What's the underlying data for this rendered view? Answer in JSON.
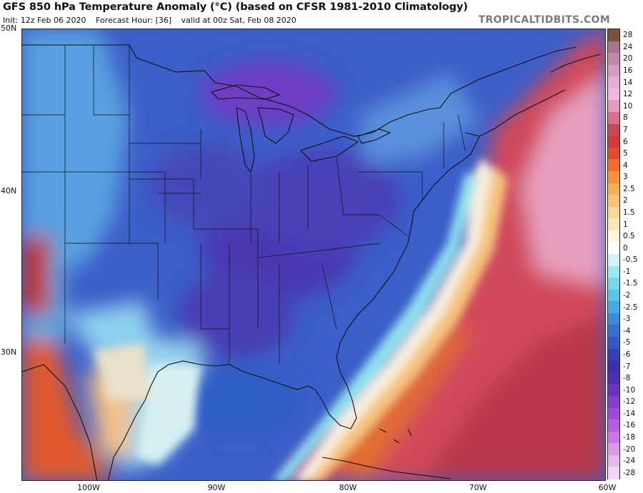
{
  "header": {
    "title": "GFS 850 hPa Temperature Anomaly (°C) (based on CFSR 1981-2010 Climatology)",
    "init": "Init: 12z Feb 06 2020",
    "forecast_hour": "Forecast Hour: [36]",
    "valid": "valid at 00z Sat, Feb 08 2020",
    "credit": "TROPICALTIDBITS.COM"
  },
  "axes": {
    "lat_labels": [
      "50N",
      "40N",
      "30N"
    ],
    "lon_labels": [
      "100W",
      "90W",
      "80W",
      "70W",
      "60W"
    ]
  },
  "colorbar": {
    "labels": [
      "28",
      "24",
      "20",
      "16",
      "14",
      "12",
      "10",
      "8",
      "7",
      "6",
      "5",
      "4",
      "3",
      "2.5",
      "2",
      "1.5",
      "1",
      "0.5",
      "0",
      "-0.5",
      "-1",
      "-1.5",
      "-2",
      "-2.5",
      "-3",
      "-4",
      "-5",
      "-6",
      "-7",
      "-8",
      "-10",
      "-12",
      "-14",
      "-16",
      "-18",
      "-20",
      "-24",
      "-28"
    ],
    "colors": [
      "#7a5440",
      "#a8758e",
      "#bf8aa8",
      "#d69cc0",
      "#e8aed2",
      "#f0b8e0",
      "#e69ac0",
      "#d4708e",
      "#c24a5a",
      "#d43a3c",
      "#e04c30",
      "#ec7030",
      "#f49440",
      "#f7b05a",
      "#f8c478",
      "#f8d898",
      "#fae8b8",
      "#fdf6e0",
      "#ffffff",
      "#d4f2f4",
      "#9ce8ee",
      "#78d8ea",
      "#5cc4e8",
      "#4aa8e0",
      "#3f8ad6",
      "#3a6ed0",
      "#3856c6",
      "#3542b4",
      "#3c30a6",
      "#5030aa",
      "#6a36b8",
      "#8440c6",
      "#9a4cd6",
      "#b45ee2",
      "#c878e6",
      "#d89ce8",
      "#e6b8ec",
      "#f0d4f0"
    ]
  },
  "map": {
    "region": "Eastern North America and Western Atlantic",
    "lat_range": [
      22,
      50
    ],
    "lon_range": [
      -105,
      -60
    ]
  }
}
